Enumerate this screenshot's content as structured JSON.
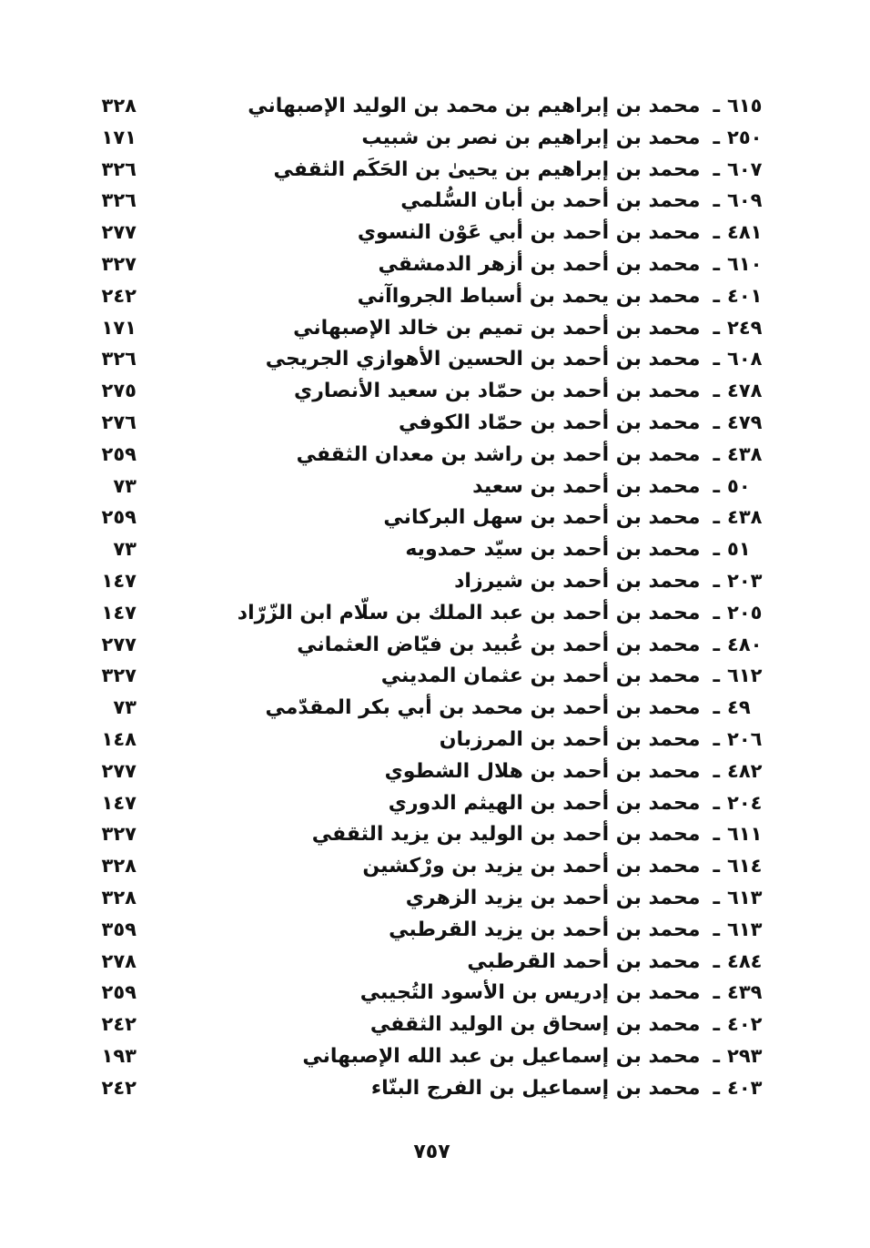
{
  "page": {
    "separator": "ـ",
    "footer_page_number": "٧٥٧"
  },
  "index": {
    "entries": [
      {
        "no": "٦١٥",
        "name": "محمد بن إبراهيم بن محمد بن الوليد الإصبهاني",
        "page": "٣٢٨"
      },
      {
        "no": "٢٥٠",
        "name": "محمد بن إبراهيم بن نصر بن شبيب",
        "page": "١٧١"
      },
      {
        "no": "٦٠٧",
        "name": "محمد بن إبراهيم بن يحيىٰ بن الحَكَم الثقفي",
        "page": "٣٢٦"
      },
      {
        "no": "٦٠٩",
        "name": "محمد بن أحمد بن أبان السُّلمي",
        "page": "٣٢٦"
      },
      {
        "no": "٤٨١",
        "name": "محمد بن أحمد بن أبي عَوْن النسوي",
        "page": "٢٧٧"
      },
      {
        "no": "٦١٠",
        "name": "محمد بن أحمد بن أزهر الدمشقي",
        "page": "٣٢٧"
      },
      {
        "no": "٤٠١",
        "name": "محمد بن يحمد بن أسباط الجرواآني",
        "page": "٢٤٢"
      },
      {
        "no": "٢٤٩",
        "name": "محمد بن أحمد بن تميم بن خالد الإصبهاني",
        "page": "١٧١"
      },
      {
        "no": "٦٠٨",
        "name": "محمد بن أحمد بن الحسين الأهوازي الجريجي",
        "page": "٣٢٦"
      },
      {
        "no": "٤٧٨",
        "name": "محمد بن أحمد بن حمّاد بن سعيد الأنصاري",
        "page": "٢٧٥"
      },
      {
        "no": "٤٧٩",
        "name": "محمد بن أحمد بن حمّاد الكوفي",
        "page": "٢٧٦"
      },
      {
        "no": "٤٣٨",
        "name": "محمد بن أحمد بن راشد بن معدان الثقفي",
        "page": "٢٥٩"
      },
      {
        "no": "٥٠",
        "name": "محمد بن أحمد بن سعيد",
        "page": "٧٣"
      },
      {
        "no": "٤٣٨",
        "name": "محمد بن أحمد بن سهل البركاني",
        "page": "٢٥٩"
      },
      {
        "no": "٥١",
        "name": "محمد بن أحمد بن سيّد حمدويه",
        "page": "٧٣"
      },
      {
        "no": "٢٠٣",
        "name": "محمد بن أحمد بن شيرزاد",
        "page": "١٤٧"
      },
      {
        "no": "٢٠٥",
        "name": "محمد بن أحمد بن عبد الملك بن سلّام ابن الزّرّاد",
        "page": "١٤٧"
      },
      {
        "no": "٤٨٠",
        "name": "محمد بن أحمد بن عُبيد بن فيّاض العثماني",
        "page": "٢٧٧"
      },
      {
        "no": "٦١٢",
        "name": "محمد بن أحمد بن عثمان المديني",
        "page": "٣٢٧"
      },
      {
        "no": "٤٩",
        "name": "محمد بن أحمد بن محمد بن أبي بكر المقدّمي",
        "page": "٧٣"
      },
      {
        "no": "٢٠٦",
        "name": "محمد بن أحمد بن المرزبان",
        "page": "١٤٨"
      },
      {
        "no": "٤٨٢",
        "name": "محمد بن أحمد بن هلال الشطوي",
        "page": "٢٧٧"
      },
      {
        "no": "٢٠٤",
        "name": "محمد بن أحمد بن الهيثم الدوري",
        "page": "١٤٧"
      },
      {
        "no": "٦١١",
        "name": "محمد بن أحمد بن الوليد بن يزيد الثقفي",
        "page": "٣٢٧"
      },
      {
        "no": "٦١٤",
        "name": "محمد بن أحمد بن يزيد بن ورْكشين",
        "page": "٣٢٨"
      },
      {
        "no": "٦١٣",
        "name": "محمد بن أحمد بن يزيد الزهري",
        "page": "٣٢٨"
      },
      {
        "no": "٦١٣",
        "name": "محمد بن أحمد بن يزيد القرطبي",
        "page": "٣٥٩"
      },
      {
        "no": "٤٨٤",
        "name": "محمد بن أحمد القرطبي",
        "page": "٢٧٨"
      },
      {
        "no": "٤٣٩",
        "name": "محمد بن إدريس بن الأسود التُجيبي",
        "page": "٢٥٩"
      },
      {
        "no": "٤٠٢",
        "name": "محمد بن إسحاق بن الوليد الثقفي",
        "page": "٢٤٢"
      },
      {
        "no": "٢٩٣",
        "name": "محمد بن إسماعيل بن عبد الله الإصبهاني",
        "page": "١٩٣"
      },
      {
        "no": "٤٠٣",
        "name": "محمد بن إسماعيل بن الفرج البنّاء",
        "page": "٢٤٢"
      }
    ]
  }
}
